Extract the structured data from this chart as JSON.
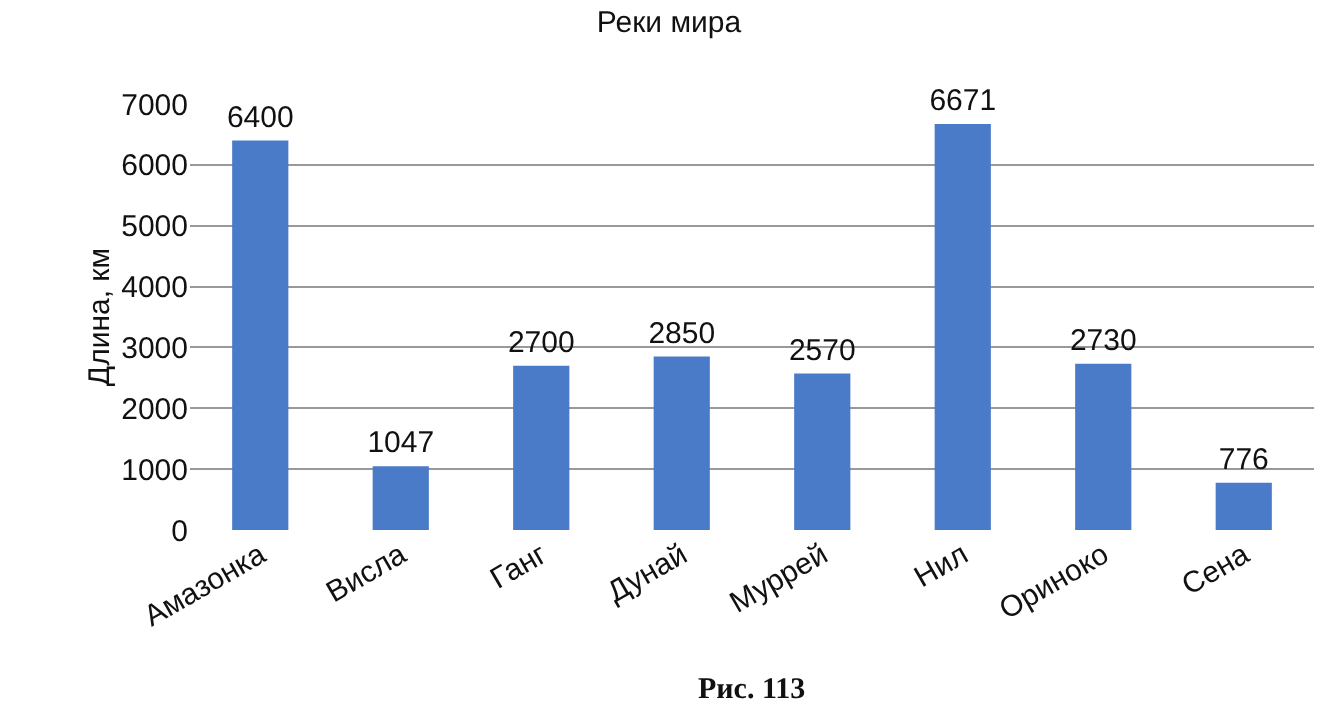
{
  "chart_data": {
    "type": "bar",
    "title": "Реки мира",
    "ylabel": "Длина, км",
    "categories": [
      "Амазонка",
      "Висла",
      "Ганг",
      "Дунай",
      "Муррей",
      "Нил",
      "Ориноко",
      "Сена"
    ],
    "values": [
      6400,
      1047,
      2700,
      2850,
      2570,
      6671,
      2730,
      776
    ],
    "color": "#4a7bc8",
    "ylim": [
      0,
      7000
    ],
    "yticks": [
      0,
      1000,
      2000,
      3000,
      4000,
      5000,
      6000,
      7000
    ],
    "grid": "y",
    "data_labels": true,
    "annotations": [
      "Рис. 113"
    ]
  }
}
